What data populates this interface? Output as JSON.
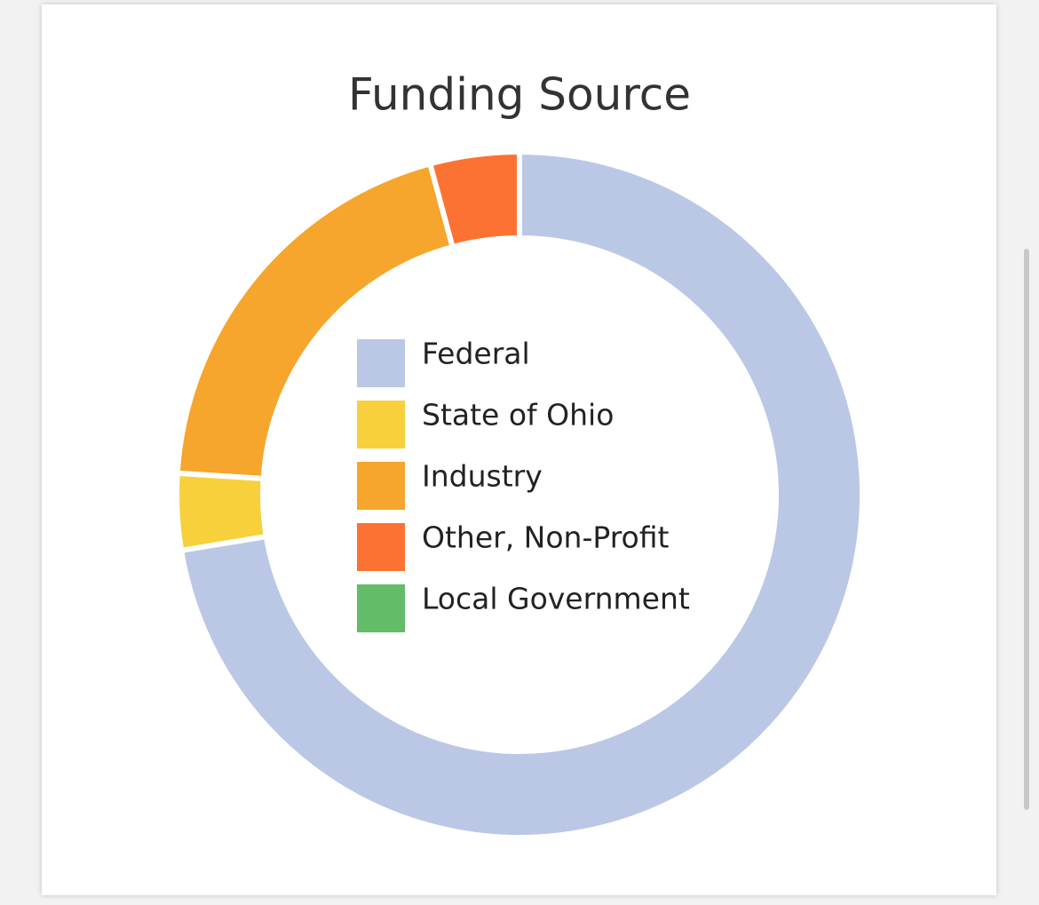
{
  "chart_data": {
    "type": "donut",
    "title": "Funding Source",
    "categories": [
      "Federal",
      "State of Ohio",
      "Industry",
      "Other, Non-Profit",
      "Local Government"
    ],
    "values": [
      72.4,
      3.6,
      19.8,
      4.2,
      0
    ],
    "colors": [
      "#bac8e6",
      "#f7d03c",
      "#f6a52d",
      "#fc7233",
      "#62bc68"
    ]
  }
}
